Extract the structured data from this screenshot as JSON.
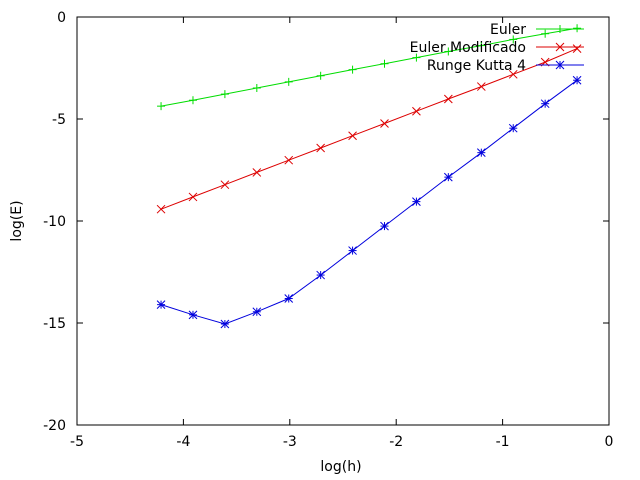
{
  "chart_data": {
    "type": "line",
    "title": "",
    "xlabel": "log(h)",
    "ylabel": "log(E)",
    "xlim": [
      -5,
      0
    ],
    "ylim": [
      -20,
      0
    ],
    "xticks": [
      -5,
      -4,
      -3,
      -2,
      -1,
      0
    ],
    "yticks": [
      0,
      -5,
      -10,
      -15,
      -20
    ],
    "grid": false,
    "legend_position": "top-right",
    "series": [
      {
        "name": "Euler",
        "color": "#00dd00",
        "marker": "plus",
        "x": [
          -4.21,
          -3.91,
          -3.61,
          -3.31,
          -3.01,
          -2.71,
          -2.41,
          -2.11,
          -1.81,
          -1.51,
          -1.2,
          -0.9,
          -0.6,
          -0.3
        ],
        "y": [
          -4.37,
          -4.08,
          -3.78,
          -3.48,
          -3.18,
          -2.88,
          -2.58,
          -2.29,
          -1.99,
          -1.69,
          -1.4,
          -1.1,
          -0.82,
          -0.55
        ]
      },
      {
        "name": "Euler Modificado",
        "color": "#dd0000",
        "marker": "cross",
        "x": [
          -4.21,
          -3.91,
          -3.61,
          -3.31,
          -3.01,
          -2.71,
          -2.41,
          -2.11,
          -1.81,
          -1.51,
          -1.2,
          -0.9,
          -0.6,
          -0.3
        ],
        "y": [
          -9.42,
          -8.82,
          -8.22,
          -7.62,
          -7.02,
          -6.42,
          -5.82,
          -5.22,
          -4.62,
          -4.02,
          -3.41,
          -2.81,
          -2.21,
          -1.55
        ]
      },
      {
        "name": "Runge Kutta 4",
        "color": "#0000dd",
        "marker": "star",
        "x": [
          -4.21,
          -3.91,
          -3.61,
          -3.31,
          -3.01,
          -2.71,
          -2.41,
          -2.11,
          -1.81,
          -1.51,
          -1.2,
          -0.9,
          -0.6,
          -0.3
        ],
        "y": [
          -14.1,
          -14.6,
          -15.05,
          -14.45,
          -13.8,
          -12.65,
          -11.45,
          -10.25,
          -9.05,
          -7.85,
          -6.65,
          -5.45,
          -4.25,
          -3.1
        ]
      }
    ]
  }
}
